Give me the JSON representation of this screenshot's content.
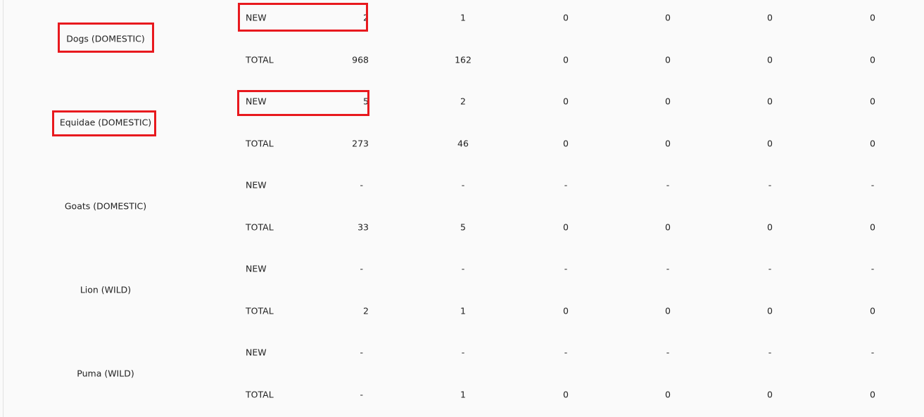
{
  "table": {
    "highlight_color": "#e8191e",
    "groups": [
      {
        "species": "Dogs (DOMESTIC)",
        "highlighted": true,
        "rows": [
          {
            "type": "NEW",
            "values": [
              "2",
              "1",
              "0",
              "0",
              "0",
              "0"
            ],
            "highlighted": true
          },
          {
            "type": "TOTAL",
            "values": [
              "968",
              "162",
              "0",
              "0",
              "0",
              "0"
            ]
          }
        ]
      },
      {
        "species": "Equidae (DOMESTIC)",
        "highlighted": true,
        "rows": [
          {
            "type": "NEW",
            "values": [
              "5",
              "2",
              "0",
              "0",
              "0",
              "0"
            ],
            "highlighted": true
          },
          {
            "type": "TOTAL",
            "values": [
              "273",
              "46",
              "0",
              "0",
              "0",
              "0"
            ]
          }
        ]
      },
      {
        "species": "Goats (DOMESTIC)",
        "highlighted": false,
        "rows": [
          {
            "type": "NEW",
            "values": [
              "-",
              "-",
              "-",
              "-",
              "-",
              "-"
            ]
          },
          {
            "type": "TOTAL",
            "values": [
              "33",
              "5",
              "0",
              "0",
              "0",
              "0"
            ]
          }
        ]
      },
      {
        "species": "Lion (WILD)",
        "highlighted": false,
        "rows": [
          {
            "type": "NEW",
            "values": [
              "-",
              "-",
              "-",
              "-",
              "-",
              "-"
            ]
          },
          {
            "type": "TOTAL",
            "values": [
              "2",
              "1",
              "0",
              "0",
              "0",
              "0"
            ]
          }
        ]
      },
      {
        "species": "Puma (WILD)",
        "highlighted": false,
        "rows": [
          {
            "type": "NEW",
            "values": [
              "-",
              "-",
              "-",
              "-",
              "-",
              "-"
            ]
          },
          {
            "type": "TOTAL",
            "values": [
              "-",
              "1",
              "0",
              "0",
              "0",
              "0"
            ]
          }
        ]
      }
    ]
  }
}
